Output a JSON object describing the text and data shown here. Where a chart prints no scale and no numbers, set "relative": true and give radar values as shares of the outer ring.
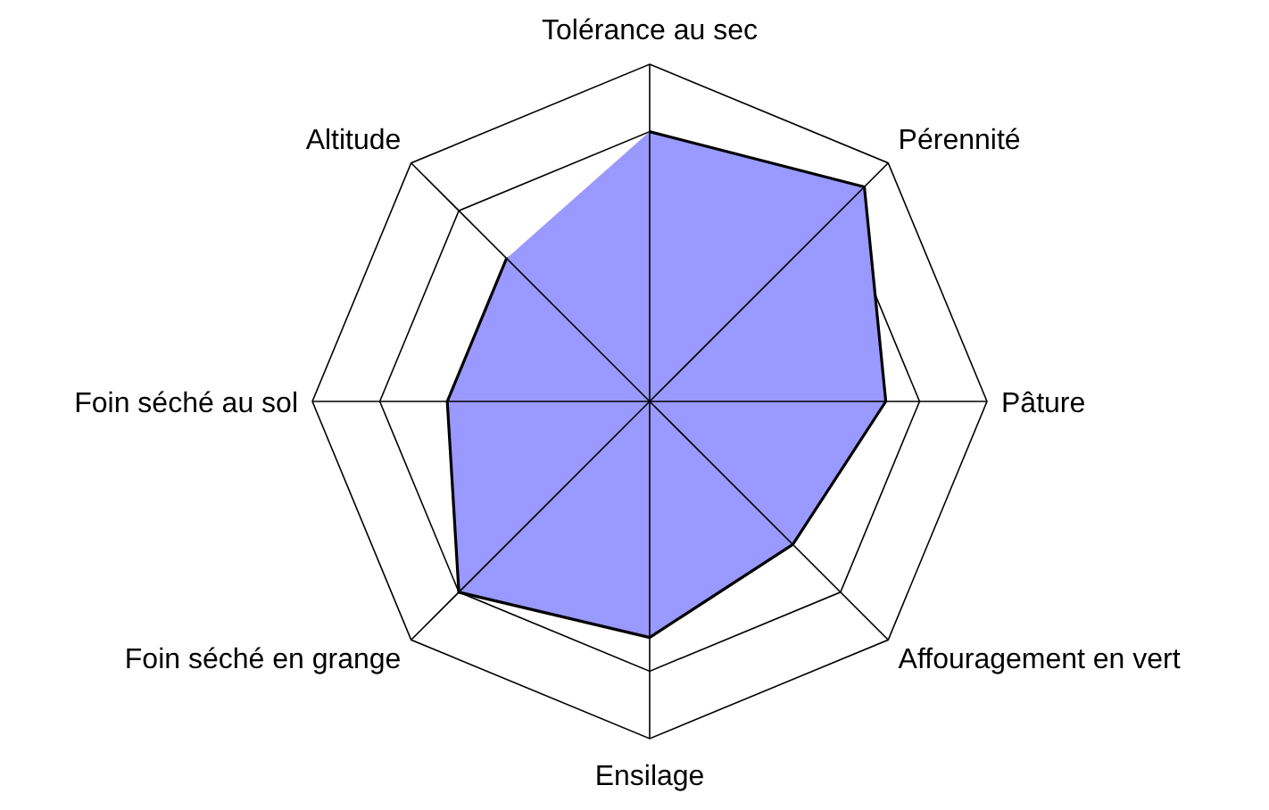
{
  "chart_data": {
    "type": "radar",
    "relative": true,
    "categories": [
      "Tolérance au sec",
      "Pérennité",
      "Pâture",
      "Affouragement en vert",
      "Ensilage",
      "Foin séché en grange",
      "Foin séché au sol",
      "Altitude"
    ],
    "series": [
      {
        "color": "#9999ff",
        "values": [
          0.8,
          0.9,
          0.7,
          0.6,
          0.7,
          0.8,
          0.6,
          0.6
        ]
      }
    ],
    "grid": true
  }
}
